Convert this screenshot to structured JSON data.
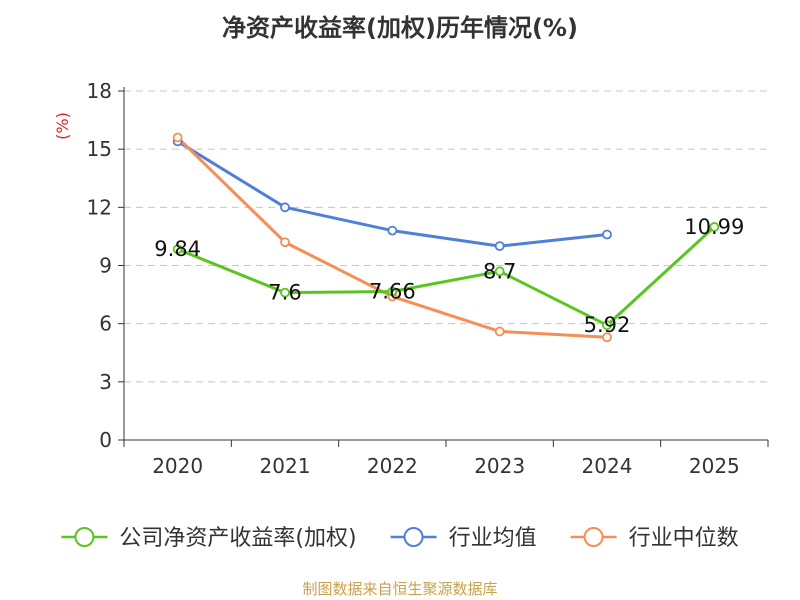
{
  "chart_data": {
    "type": "line",
    "title": "净资产收益率(加权)历年情况(%)",
    "ylabel": "(%)",
    "xlabel": "",
    "categories": [
      "2020",
      "2021",
      "2022",
      "2023",
      "2024",
      "2025"
    ],
    "ylim": [
      0,
      18
    ],
    "yticks": [
      0,
      3,
      6,
      9,
      12,
      15,
      18
    ],
    "grid": true,
    "legend_position": "bottom",
    "series": [
      {
        "name": "公司净资产收益率(加权)",
        "color": "#5ac520",
        "values": [
          9.84,
          7.6,
          7.66,
          8.7,
          5.92,
          10.99
        ],
        "labels": [
          "9.84",
          "7.6",
          "7.66",
          "8.7",
          "5.92",
          "10.99"
        ]
      },
      {
        "name": "行业均值",
        "color": "#4f7fd8",
        "values": [
          15.4,
          12.0,
          10.8,
          10.0,
          10.6,
          null
        ]
      },
      {
        "name": "行业中位数",
        "color": "#f68e56",
        "values": [
          15.6,
          10.2,
          7.4,
          5.6,
          5.3,
          null
        ]
      }
    ]
  },
  "source": "制图数据来自恒生聚源数据库"
}
